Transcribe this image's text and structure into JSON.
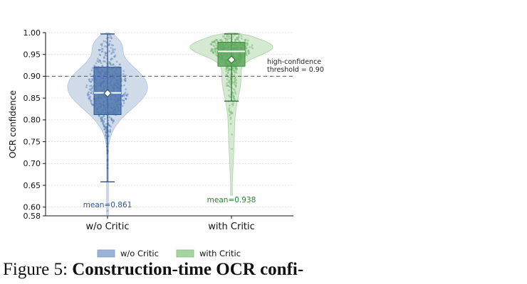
{
  "caption": {
    "label": "Figure 5:",
    "title": "Construction-time OCR confi-"
  },
  "chart_data": {
    "type": "violin",
    "ylabel": "OCR confidence",
    "xlabel": "",
    "ylim": [
      0.58,
      1.0
    ],
    "yticks": [
      "1.00",
      "0.95",
      "0.90",
      "0.85",
      "0.80",
      "0.75",
      "0.70",
      "0.65",
      "0.60",
      "0.58"
    ],
    "categories": [
      "w/o Critic",
      "with Critic"
    ],
    "grid": "horizontal dotted",
    "legend_placement": "bottom",
    "threshold": {
      "value": 0.9,
      "label_line1": "high-confidence",
      "label_line2": "threshold = 0.90"
    },
    "series": [
      {
        "name": "w/o Critic",
        "color": "#4a72aa",
        "box": {
          "q1": 0.812,
          "median": 0.862,
          "q3": 0.921,
          "whisker_low": 0.658,
          "whisker_high": 0.997
        },
        "mean": 0.861,
        "mean_label": "mean=0.861",
        "min": 0.583
      },
      {
        "name": "with Critic",
        "color": "#5aa55a",
        "box": {
          "q1": 0.923,
          "median": 0.957,
          "q3": 0.978,
          "whisker_low": 0.843,
          "whisker_high": 0.997
        },
        "mean": 0.938,
        "mean_label": "mean=0.938",
        "min": 0.627
      }
    ]
  }
}
